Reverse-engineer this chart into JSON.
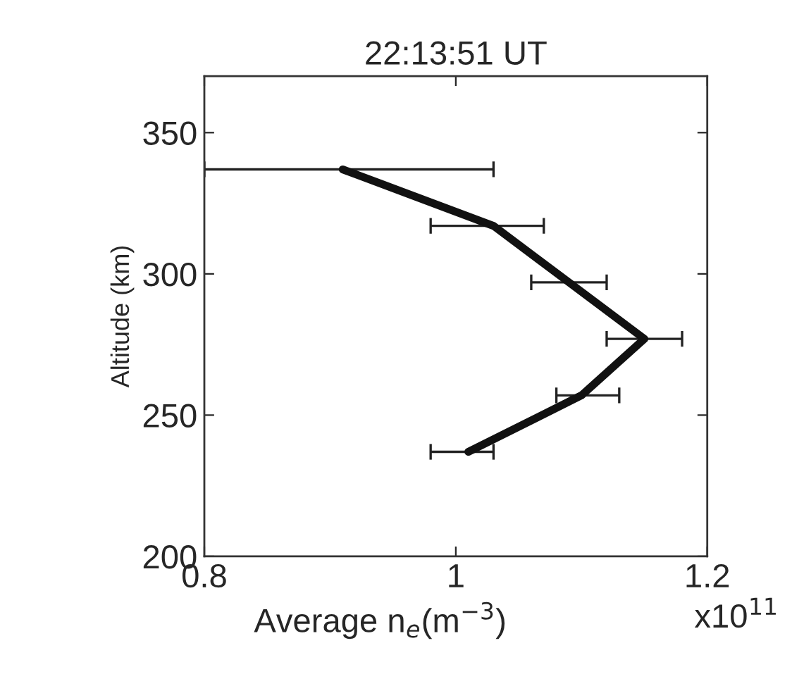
{
  "chart_data": {
    "type": "line",
    "title": "22:13:51 UT",
    "xlabel": "Average n$_{e}$(m$^{−3}$)",
    "ylabel": "Altitude (km)",
    "annotations": [
      "x10$^{11}$"
    ],
    "series": [
      {
        "color": "#111111",
        "x": [
          0.91,
          1.03,
          1.09,
          1.15,
          1.1,
          1.01
        ],
        "values": [
          337,
          317,
          297,
          277,
          257,
          237
        ],
        "xerrors": [
          [
            0.8,
            1.03
          ],
          [
            0.98,
            1.07
          ],
          [
            1.06,
            1.12
          ],
          [
            1.12,
            1.18
          ],
          [
            1.08,
            1.13
          ],
          [
            0.98,
            1.03
          ]
        ]
      }
    ],
    "xlim": [
      0.8,
      1.2
    ],
    "xticks": [
      0.8,
      1,
      1.2
    ],
    "ylim": [
      200,
      370
    ],
    "yticks": [
      200,
      250,
      300,
      350
    ],
    "grid": false,
    "legend": false
  }
}
